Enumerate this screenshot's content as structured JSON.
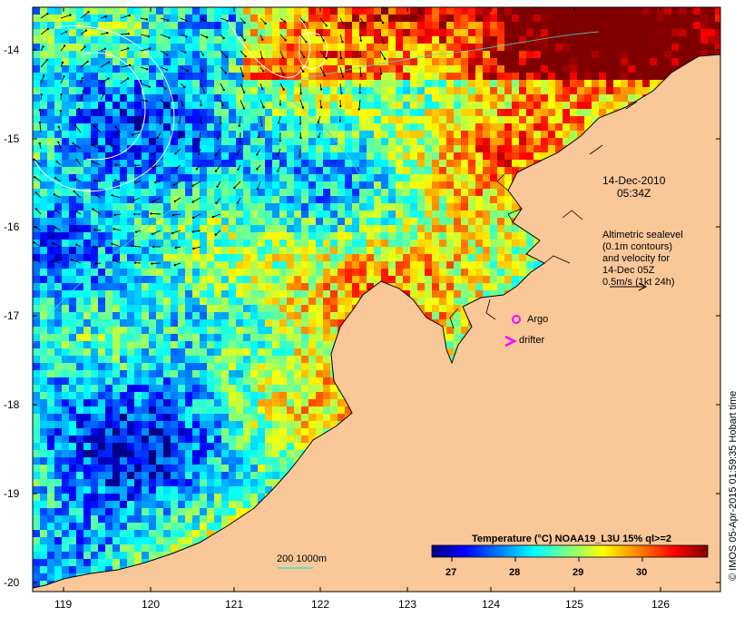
{
  "date_label": "14-Dec-2010",
  "time_label": "05:34Z",
  "altimetry_note": [
    "Altimetric sealevel",
    "(0.1m contours)",
    "and velocity for",
    "14-Dec 05Z",
    "0.5m/s (1kt 24h)"
  ],
  "legend": {
    "argo": "Argo",
    "drifter": "drifter"
  },
  "depth_label": "200  1000m",
  "colorbar": {
    "title": "Temperature (°C) NOAA19_L3U 15% ql>=2",
    "ticks": [
      "27",
      "28",
      "29",
      "30"
    ]
  },
  "credit": "© IMOS 05-Apr-2015 01:59:35 Hobart time",
  "axes": {
    "lat_ticks": [
      "-14",
      "-15",
      "-16",
      "-17",
      "-18",
      "-19",
      "-20"
    ],
    "lon_ticks": [
      "119",
      "120",
      "121",
      "122",
      "123",
      "124",
      "125",
      "126"
    ]
  },
  "colors": {
    "land": "#fac799",
    "argo": "#ff00ff",
    "drifter": "#ff00ff",
    "contour": "#ffffff",
    "depth_contour": "#40e0d0",
    "colorbar_stops": [
      "#00007f",
      "#0000ff",
      "#0080ff",
      "#00ffff",
      "#80ff80",
      "#ffff00",
      "#ff8000",
      "#ff0000",
      "#7f0000"
    ]
  }
}
